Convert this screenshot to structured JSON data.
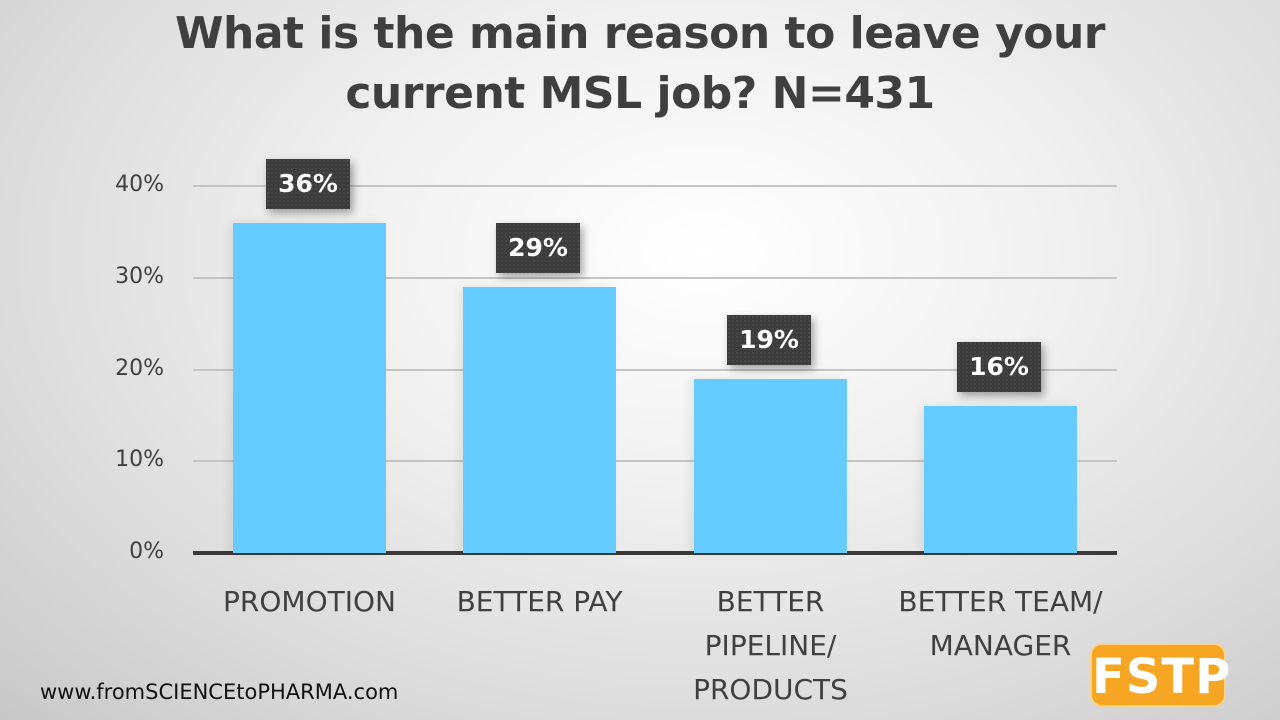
{
  "title_line1": "What is the main reason to leave your",
  "title_line2": "current MSL job? N=431",
  "footer": "www.fromSCIENCEtoPHARMA.com",
  "logo": "FSTP",
  "colors": {
    "bar": "#66ccff",
    "label_bg": "#3c3c3c",
    "logo": "#f6a623"
  },
  "yticks": [
    "40%",
    "30%",
    "20%",
    "10%",
    "0%"
  ],
  "bars": [
    {
      "label_lines": [
        "PROMOTION"
      ],
      "value": 36,
      "value_label": "36%"
    },
    {
      "label_lines": [
        "BETTER PAY"
      ],
      "value": 29,
      "value_label": "29%"
    },
    {
      "label_lines": [
        "BETTER",
        "PIPELINE/",
        "PRODUCTS"
      ],
      "value": 19,
      "value_label": "19%"
    },
    {
      "label_lines": [
        "BETTER TEAM/",
        "MANAGER"
      ],
      "value": 16,
      "value_label": "16%"
    }
  ],
  "chart_data": {
    "type": "bar",
    "title": "What is the main reason to leave your current MSL job? N=431",
    "categories": [
      "PROMOTION",
      "BETTER PAY",
      "BETTER PIPELINE/ PRODUCTS",
      "BETTER TEAM/ MANAGER"
    ],
    "values": [
      36,
      29,
      19,
      16
    ],
    "value_labels": [
      "36%",
      "29%",
      "19%",
      "16%"
    ],
    "xlabel": "",
    "ylabel": "",
    "ylim": [
      0,
      40
    ],
    "yticks": [
      "0%",
      "10%",
      "20%",
      "30%",
      "40%"
    ],
    "grid": true,
    "legend": null
  }
}
